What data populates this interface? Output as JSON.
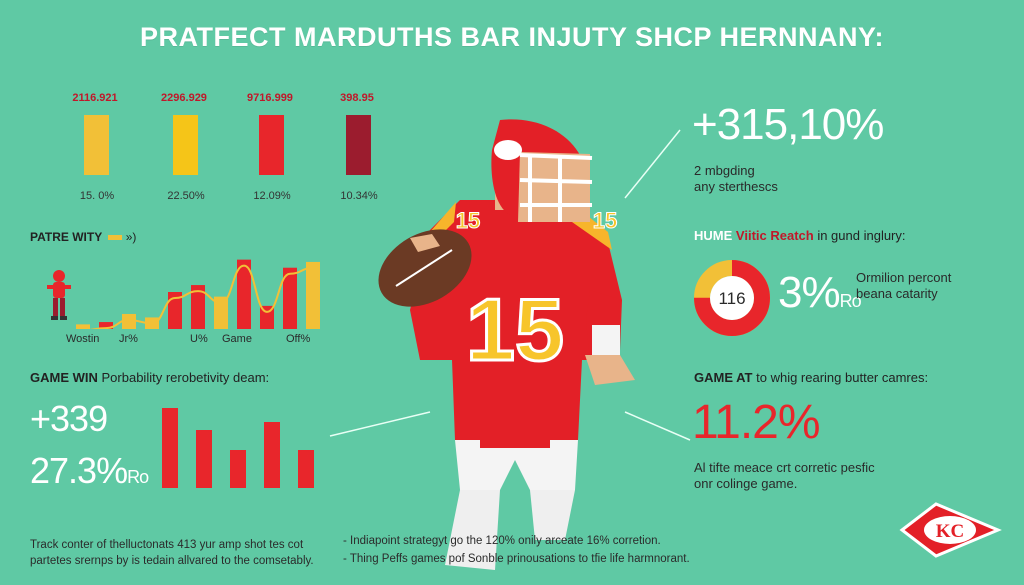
{
  "title": "PRATFECT MARDUTHS BAR INJUTY SHCP HERNNANY:",
  "top_bars": {
    "top_labels": [
      "2116.921",
      "2296.929",
      "9716.999",
      "398.95"
    ],
    "bottom_labels": [
      "15. 0%",
      "22.50%",
      "12.09%",
      "10.34%"
    ],
    "colors": [
      "#f2c037",
      "#f5c518",
      "#e8262b",
      "#9b1c2e"
    ],
    "values": [
      0.62,
      0.62,
      0.62,
      0.62
    ]
  },
  "patre": {
    "heading": "PATRE WITY",
    "heading_tail": "»)",
    "x_labels": [
      "Wostin",
      "Jr%",
      "U%",
      "Game",
      "Off%"
    ],
    "values": [
      4,
      6,
      13,
      10,
      32,
      38,
      28,
      60,
      20,
      53,
      58
    ],
    "bar_colors": [
      "#f2c037",
      "#e8262b",
      "#f2c037",
      "#f2c037",
      "#e8262b",
      "#e8262b",
      "#f2c037",
      "#e8262b",
      "#e8262b",
      "#e8262b",
      "#f2c037"
    ]
  },
  "game_win": {
    "heading": "GAME WIN",
    "heading_tail": "Porbability rerobetivity deam:",
    "stat1": "+339",
    "stat2": "27.3%",
    "stat2_unit": "Ro",
    "values": [
      80,
      58,
      38,
      66,
      38
    ]
  },
  "right_top": {
    "stat": "+315,10%",
    "line1": "2 mbgding",
    "line2": "any sterthescs"
  },
  "hume": {
    "heading_a": "HUME",
    "heading_b": "Viitic Reatch",
    "heading_c": "in gund inglury:",
    "ring_value": "116",
    "stat": "3%",
    "stat_unit": "Ro",
    "desc1": "Ormilion percont",
    "desc2": "beana catarity",
    "ring_fraction": 0.75
  },
  "game_at": {
    "heading": "GAME AT",
    "heading_tail": "to whig rearing butter camres:",
    "stat": "11.2%",
    "line1": "Al tifte meace crt corretic pesfic",
    "line2": "onr colinge game."
  },
  "footer_left": {
    "line1": "Track conter of thelluctonats 413 yur amp shot tes cot",
    "line2": "partetes srernps by is tedain allvared to the comsetably."
  },
  "footer_right": {
    "line1": "- Indiapoint strategyt go the 120% onily arceate 16% corretion.",
    "line2": "- Thing Peffs games pof Sonble prinousations to tfie life harmnorant."
  },
  "player": {
    "jersey_number": "15"
  },
  "logo": {
    "text": "KC"
  },
  "colors": {
    "background": "#5fc9a4",
    "red": "#e8262b",
    "yellow": "#f2c037",
    "maroon": "#9b1c2e"
  }
}
